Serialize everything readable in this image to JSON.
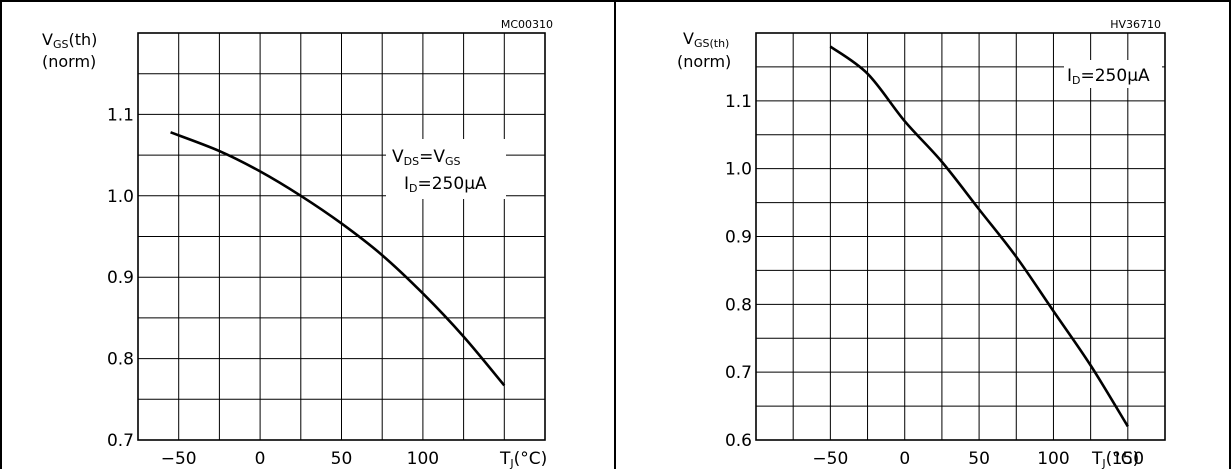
{
  "chart_data": [
    {
      "type": "line",
      "code": "MC00310",
      "ylabel_main": "V",
      "ylabel_sub": "GS",
      "ylabel_tail": "(th)",
      "ylabel_norm": "(norm)",
      "xlabel_main": "T",
      "xlabel_sub": "J",
      "xlabel_tail": "(°C)",
      "xlim": [
        -75,
        175
      ],
      "ylim": [
        0.7,
        1.2
      ],
      "x_ticks": [
        -50,
        0,
        50,
        100
      ],
      "x_tick_labels": [
        "−50",
        "0",
        "50",
        "100"
      ],
      "y_ticks": [
        0.7,
        0.8,
        0.9,
        1.0,
        1.1
      ],
      "y_tick_labels": [
        "0.7",
        "0.8",
        "0.9",
        "1.0",
        "1.1"
      ],
      "grid": true,
      "annotation": {
        "line1": "V",
        "line1_sub": "DS",
        "line1_mid": "=V",
        "line1_sub2": "GS",
        "line2": "I",
        "line2_sub": "D",
        "line2_tail": "=250μA"
      },
      "series": [
        {
          "x": [
            -55,
            -25,
            0,
            25,
            50,
            75,
            100,
            125,
            150
          ],
          "y": [
            1.078,
            1.055,
            1.03,
            1.0,
            0.966,
            0.927,
            0.88,
            0.827,
            0.767
          ]
        }
      ]
    },
    {
      "type": "line",
      "code": "HV36710",
      "ylabel_main": "V",
      "ylabel_sub": "GS(th)",
      "ylabel_tail": "",
      "ylabel_norm": "(norm)",
      "xlabel_main": "T",
      "xlabel_sub": "J",
      "xlabel_tail": "(°C)",
      "xlim": [
        -100,
        175
      ],
      "ylim": [
        0.6,
        1.2
      ],
      "x_ticks": [
        -50,
        0,
        50,
        100,
        150
      ],
      "x_tick_labels": [
        "−50",
        "0",
        "50",
        "100",
        "150"
      ],
      "y_ticks": [
        0.6,
        0.7,
        0.8,
        0.9,
        1.0,
        1.1
      ],
      "y_tick_labels": [
        "0.6",
        "0.7",
        "0.8",
        "0.9",
        "1.0",
        "1.1"
      ],
      "grid": true,
      "annotation": {
        "line1": "I",
        "line1_sub": "D",
        "line1_mid": "=250μA",
        "line1_sub2": "",
        "line2": "",
        "line2_sub": "",
        "line2_tail": ""
      },
      "series": [
        {
          "x": [
            -50,
            -25,
            0,
            25,
            50,
            75,
            100,
            125,
            150
          ],
          "y": [
            1.18,
            1.14,
            1.07,
            1.01,
            0.94,
            0.87,
            0.79,
            0.71,
            0.62
          ]
        }
      ]
    }
  ]
}
